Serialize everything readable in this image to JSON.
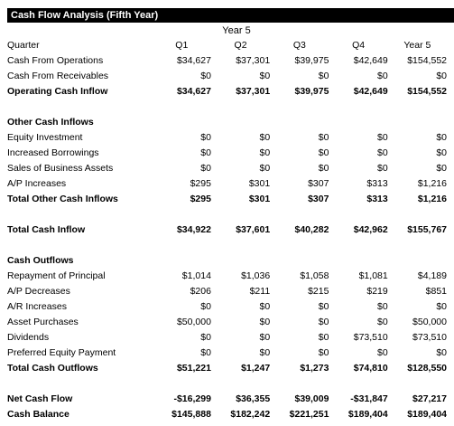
{
  "title": "Cash Flow Analysis (Fifth Year)",
  "year_label": "Year 5",
  "header": {
    "label": "Quarter",
    "cols": [
      "Q1",
      "Q2",
      "Q3",
      "Q4",
      "Year 5"
    ]
  },
  "rows": [
    {
      "label": "Cash From Operations",
      "values": [
        "$34,627",
        "$37,301",
        "$39,975",
        "$42,649",
        "$154,552"
      ],
      "bold": false
    },
    {
      "label": "Cash From Receivables",
      "values": [
        "$0",
        "$0",
        "$0",
        "$0",
        "$0"
      ],
      "bold": false
    },
    {
      "label": "Operating Cash Inflow",
      "values": [
        "$34,627",
        "$37,301",
        "$39,975",
        "$42,649",
        "$154,552"
      ],
      "bold": true
    },
    {
      "gap": true
    },
    {
      "label": "Other Cash Inflows",
      "values": [
        "",
        "",
        "",
        "",
        ""
      ],
      "bold": true
    },
    {
      "label": "Equity Investment",
      "values": [
        "$0",
        "$0",
        "$0",
        "$0",
        "$0"
      ],
      "bold": false
    },
    {
      "label": "Increased Borrowings",
      "values": [
        "$0",
        "$0",
        "$0",
        "$0",
        "$0"
      ],
      "bold": false
    },
    {
      "label": "Sales of Business Assets",
      "values": [
        "$0",
        "$0",
        "$0",
        "$0",
        "$0"
      ],
      "bold": false
    },
    {
      "label": "A/P Increases",
      "values": [
        "$295",
        "$301",
        "$307",
        "$313",
        "$1,216"
      ],
      "bold": false
    },
    {
      "label": "Total Other Cash Inflows",
      "values": [
        "$295",
        "$301",
        "$307",
        "$313",
        "$1,216"
      ],
      "bold": true
    },
    {
      "gap": true
    },
    {
      "label": "Total Cash Inflow",
      "values": [
        "$34,922",
        "$37,601",
        "$40,282",
        "$42,962",
        "$155,767"
      ],
      "bold": true
    },
    {
      "gap": true
    },
    {
      "label": "Cash Outflows",
      "values": [
        "",
        "",
        "",
        "",
        ""
      ],
      "bold": true
    },
    {
      "label": "Repayment of Principal",
      "values": [
        "$1,014",
        "$1,036",
        "$1,058",
        "$1,081",
        "$4,189"
      ],
      "bold": false
    },
    {
      "label": "A/P Decreases",
      "values": [
        "$206",
        "$211",
        "$215",
        "$219",
        "$851"
      ],
      "bold": false
    },
    {
      "label": "A/R Increases",
      "values": [
        "$0",
        "$0",
        "$0",
        "$0",
        "$0"
      ],
      "bold": false
    },
    {
      "label": "Asset Purchases",
      "values": [
        "$50,000",
        "$0",
        "$0",
        "$0",
        "$50,000"
      ],
      "bold": false
    },
    {
      "label": "Dividends",
      "values": [
        "$0",
        "$0",
        "$0",
        "$73,510",
        "$73,510"
      ],
      "bold": false
    },
    {
      "label": "Preferred Equity Payment",
      "values": [
        "$0",
        "$0",
        "$0",
        "$0",
        "$0"
      ],
      "bold": false
    },
    {
      "label": "Total Cash Outflows",
      "values": [
        "$51,221",
        "$1,247",
        "$1,273",
        "$74,810",
        "$128,550"
      ],
      "bold": true
    },
    {
      "gap": true
    },
    {
      "label": "Net Cash Flow",
      "values": [
        "-$16,299",
        "$36,355",
        "$39,009",
        "-$31,847",
        "$27,217"
      ],
      "bold": true
    },
    {
      "label": "Cash Balance",
      "values": [
        "$145,888",
        "$182,242",
        "$221,251",
        "$189,404",
        "$189,404"
      ],
      "bold": true
    }
  ]
}
